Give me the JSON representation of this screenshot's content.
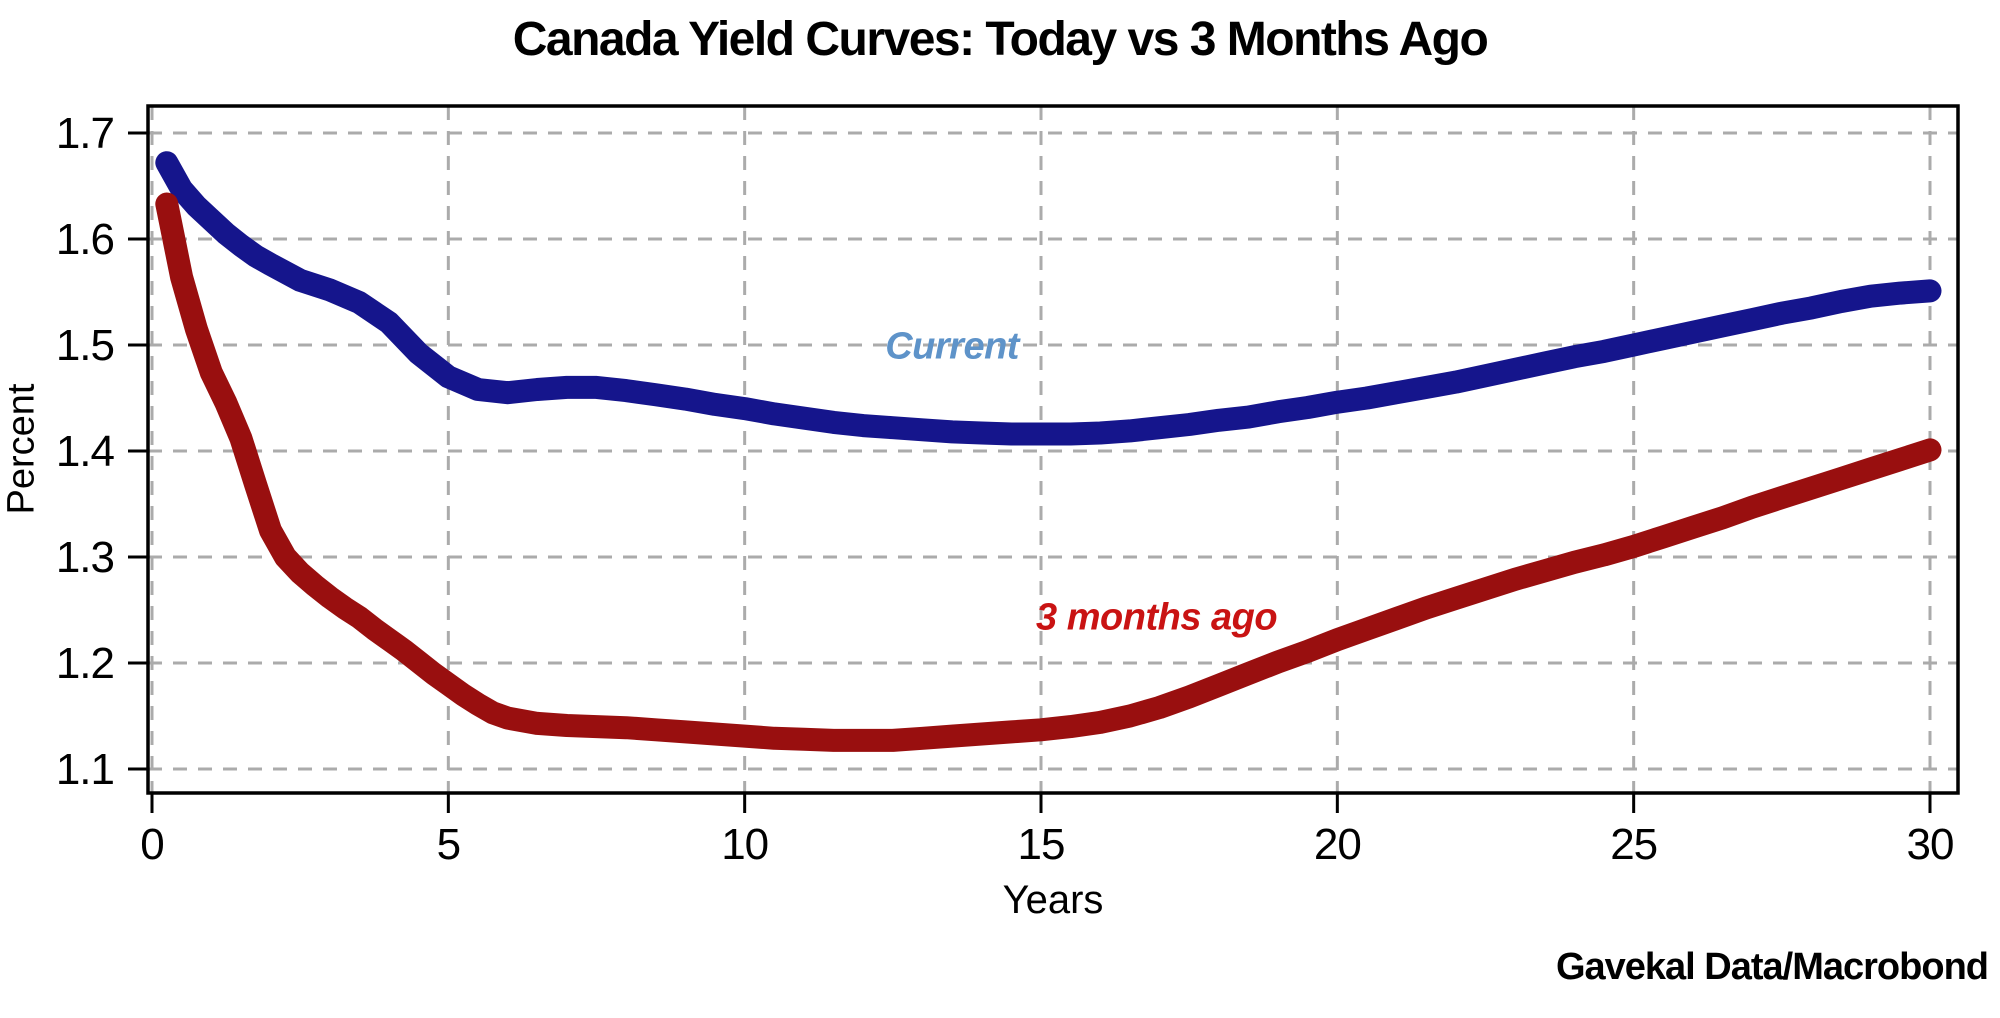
{
  "page": {
    "background": "#ffffff"
  },
  "chart_data": {
    "type": "line",
    "title": "Canada Yield Curves: Today vs 3 Months Ago",
    "xlabel": "Years",
    "ylabel": "Percent",
    "source": "Gavekal Data/Macrobond",
    "grid": true,
    "grid_color": "#ababab",
    "axis_color": "#000000",
    "tick_label_color": "#000000",
    "x_ticks": [
      0,
      5,
      10,
      15,
      20,
      25,
      30
    ],
    "x_tick_labels": [
      "0",
      "5",
      "10",
      "15",
      "20",
      "25",
      "30"
    ],
    "y_ticks": [
      1.1,
      1.2,
      1.3,
      1.4,
      1.5,
      1.6,
      1.7
    ],
    "y_tick_labels": [
      "1.1",
      "1.2",
      "1.3",
      "1.4",
      "1.5",
      "1.6",
      "1.7"
    ],
    "xlim": [
      -0.07,
      30.47
    ],
    "ylim": [
      1.077,
      1.726
    ],
    "series": [
      {
        "name": "Current",
        "color": "#15158c",
        "label_color": "#5e93c9",
        "label_x": 13.5,
        "label_y": 1.498,
        "points": [
          [
            0.25,
            1.672
          ],
          [
            0.5,
            1.647
          ],
          [
            0.75,
            1.631
          ],
          [
            1,
            1.618
          ],
          [
            1.25,
            1.605
          ],
          [
            1.5,
            1.594
          ],
          [
            1.75,
            1.584
          ],
          [
            2,
            1.576
          ],
          [
            2.5,
            1.561
          ],
          [
            3,
            1.552
          ],
          [
            3.5,
            1.54
          ],
          [
            4,
            1.521
          ],
          [
            4.5,
            1.492
          ],
          [
            5,
            1.47
          ],
          [
            5.5,
            1.458
          ],
          [
            6,
            1.455
          ],
          [
            6.5,
            1.458
          ],
          [
            7,
            1.46
          ],
          [
            7.5,
            1.46
          ],
          [
            8,
            1.457
          ],
          [
            8.5,
            1.453
          ],
          [
            9,
            1.449
          ],
          [
            9.5,
            1.444
          ],
          [
            10,
            1.44
          ],
          [
            10.5,
            1.435
          ],
          [
            11,
            1.431
          ],
          [
            11.5,
            1.427
          ],
          [
            12,
            1.424
          ],
          [
            12.5,
            1.422
          ],
          [
            13,
            1.42
          ],
          [
            13.5,
            1.418
          ],
          [
            14,
            1.417
          ],
          [
            14.5,
            1.416
          ],
          [
            15,
            1.416
          ],
          [
            15.5,
            1.416
          ],
          [
            16,
            1.417
          ],
          [
            16.5,
            1.419
          ],
          [
            17,
            1.422
          ],
          [
            17.5,
            1.425
          ],
          [
            18,
            1.429
          ],
          [
            18.5,
            1.432
          ],
          [
            19,
            1.437
          ],
          [
            19.5,
            1.441
          ],
          [
            20,
            1.446
          ],
          [
            20.5,
            1.45
          ],
          [
            21,
            1.455
          ],
          [
            21.5,
            1.46
          ],
          [
            22,
            1.465
          ],
          [
            22.5,
            1.471
          ],
          [
            23,
            1.477
          ],
          [
            23.5,
            1.483
          ],
          [
            24,
            1.489
          ],
          [
            24.5,
            1.494
          ],
          [
            25,
            1.5
          ],
          [
            25.5,
            1.506
          ],
          [
            26,
            1.512
          ],
          [
            26.5,
            1.518
          ],
          [
            27,
            1.524
          ],
          [
            27.5,
            1.53
          ],
          [
            28,
            1.535
          ],
          [
            28.5,
            1.541
          ],
          [
            29,
            1.546
          ],
          [
            29.5,
            1.549
          ],
          [
            30,
            1.551
          ]
        ]
      },
      {
        "name": "3 months ago",
        "color": "#990f0f",
        "label_color": "#c91313",
        "label_x": 16.95,
        "label_y": 1.242,
        "points": [
          [
            0.25,
            1.633
          ],
          [
            0.5,
            1.564
          ],
          [
            0.75,
            1.515
          ],
          [
            1,
            1.474
          ],
          [
            1.25,
            1.445
          ],
          [
            1.5,
            1.412
          ],
          [
            1.75,
            1.368
          ],
          [
            2,
            1.325
          ],
          [
            2.25,
            1.3
          ],
          [
            2.5,
            1.285
          ],
          [
            2.75,
            1.273
          ],
          [
            3,
            1.262
          ],
          [
            3.25,
            1.252
          ],
          [
            3.5,
            1.243
          ],
          [
            3.75,
            1.232
          ],
          [
            4,
            1.222
          ],
          [
            4.25,
            1.212
          ],
          [
            4.5,
            1.201
          ],
          [
            4.75,
            1.19
          ],
          [
            5,
            1.18
          ],
          [
            5.25,
            1.17
          ],
          [
            5.5,
            1.161
          ],
          [
            5.75,
            1.153
          ],
          [
            6,
            1.148
          ],
          [
            6.5,
            1.143
          ],
          [
            7,
            1.141
          ],
          [
            7.5,
            1.14
          ],
          [
            8,
            1.139
          ],
          [
            8.5,
            1.137
          ],
          [
            9,
            1.135
          ],
          [
            9.5,
            1.133
          ],
          [
            10,
            1.131
          ],
          [
            10.5,
            1.129
          ],
          [
            11,
            1.128
          ],
          [
            11.5,
            1.127
          ],
          [
            12,
            1.127
          ],
          [
            12.5,
            1.127
          ],
          [
            13,
            1.129
          ],
          [
            13.5,
            1.131
          ],
          [
            14,
            1.133
          ],
          [
            14.5,
            1.135
          ],
          [
            15,
            1.137
          ],
          [
            15.5,
            1.14
          ],
          [
            16,
            1.144
          ],
          [
            16.5,
            1.15
          ],
          [
            17,
            1.158
          ],
          [
            17.5,
            1.168
          ],
          [
            18,
            1.179
          ],
          [
            18.5,
            1.19
          ],
          [
            19,
            1.201
          ],
          [
            19.5,
            1.211
          ],
          [
            20,
            1.222
          ],
          [
            20.5,
            1.232
          ],
          [
            21,
            1.242
          ],
          [
            21.5,
            1.252
          ],
          [
            22,
            1.261
          ],
          [
            22.5,
            1.27
          ],
          [
            23,
            1.279
          ],
          [
            23.5,
            1.287
          ],
          [
            24,
            1.295
          ],
          [
            24.5,
            1.302
          ],
          [
            25,
            1.31
          ],
          [
            25.5,
            1.319
          ],
          [
            26,
            1.328
          ],
          [
            26.5,
            1.337
          ],
          [
            27,
            1.347
          ],
          [
            27.5,
            1.356
          ],
          [
            28,
            1.365
          ],
          [
            28.5,
            1.374
          ],
          [
            29,
            1.383
          ],
          [
            29.5,
            1.392
          ],
          [
            30,
            1.401
          ]
        ]
      }
    ]
  }
}
